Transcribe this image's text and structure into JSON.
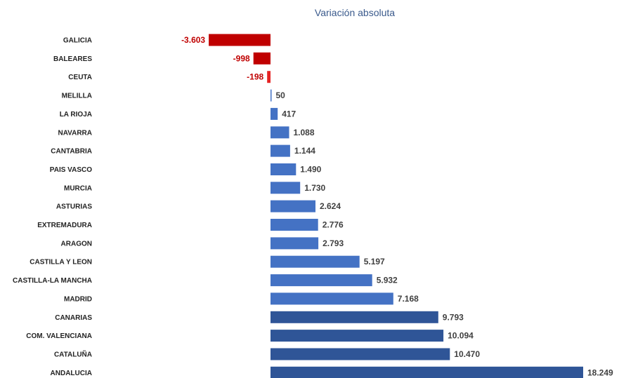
{
  "chart_data": {
    "type": "bar",
    "orientation": "horizontal",
    "title": "Variación absoluta",
    "categories": [
      "GALICIA",
      "BALEARES",
      "CEUTA",
      "MELILLA",
      "LA RIOJA",
      "NAVARRA",
      "CANTABRIA",
      "PAIS VASCO",
      "MURCIA",
      "ASTURIAS",
      "EXTREMADURA",
      "ARAGON",
      "CASTILLA Y LEON",
      "CASTILLA-LA MANCHA",
      "MADRID",
      "CANARIAS",
      "COM. VALENCIANA",
      "CATALUÑA",
      "ANDALUCIA"
    ],
    "values": [
      -3603,
      -998,
      -198,
      50,
      417,
      1088,
      1144,
      1490,
      1730,
      2624,
      2776,
      2793,
      5197,
      5932,
      7168,
      9793,
      10094,
      10470,
      18249
    ],
    "value_labels": [
      "-3.603",
      "-998",
      "-198",
      "50",
      "417",
      "1.088",
      "1.144",
      "1.490",
      "1.730",
      "2.624",
      "2.776",
      "2.793",
      "5.197",
      "5.932",
      "7.168",
      "9.793",
      "10.094",
      "10.470",
      "18.249"
    ],
    "colors": {
      "negative_dark": "#c00000",
      "negative_light": "#e52222",
      "positive_light": "#4472c4",
      "positive_dark": "#2f5597",
      "negative_label": "#c00000",
      "positive_label": "#404040"
    },
    "grid": false,
    "legend": "none"
  }
}
